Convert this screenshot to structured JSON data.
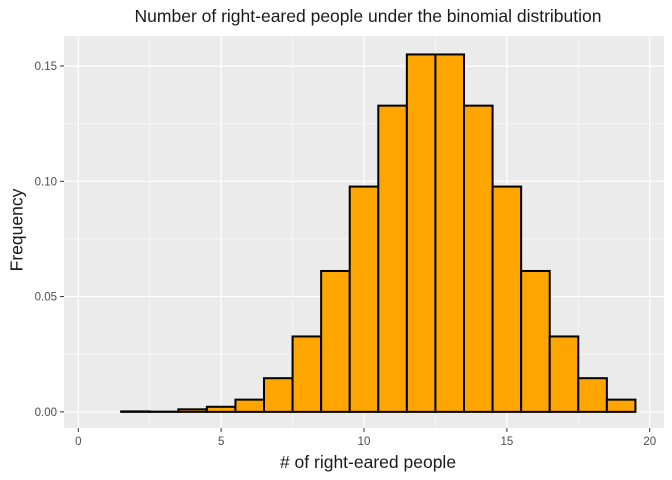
{
  "chart_data": {
    "type": "bar",
    "title": "Number of right-eared people under the binomial distribution",
    "xlabel": "# of right-eared people",
    "ylabel": "Frequency",
    "x": [
      1,
      2,
      3,
      4,
      5,
      6,
      7,
      8,
      9,
      10,
      11,
      12,
      13,
      14,
      15,
      16,
      17,
      18,
      19
    ],
    "values": [
      0.0,
      0.0002,
      0.0001,
      0.0011,
      0.0022,
      0.0053,
      0.0146,
      0.0327,
      0.0611,
      0.0977,
      0.1328,
      0.155,
      0.155,
      0.1328,
      0.0977,
      0.0611,
      0.0327,
      0.0146,
      0.0053
    ],
    "xlim": [
      -0.5,
      20.5
    ],
    "ylim": [
      -0.007,
      0.163
    ],
    "x_ticks": [
      0,
      5,
      10,
      15,
      20
    ],
    "y_ticks": [
      0.0,
      0.05,
      0.1,
      0.15
    ],
    "x_tick_labels": [
      "0",
      "5",
      "10",
      "15",
      "20"
    ],
    "y_tick_labels": [
      "0.00",
      "0.05",
      "0.10",
      "0.15"
    ],
    "grid": true,
    "bar_fill": "#FFA500",
    "bar_stroke": "#000000",
    "panel_background": "#EBEBEB",
    "grid_color": "#FFFFFF"
  }
}
